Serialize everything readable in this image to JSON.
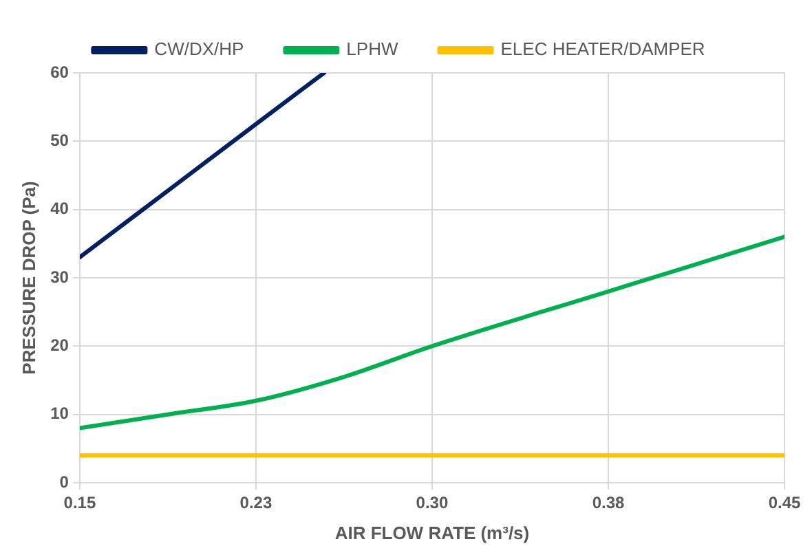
{
  "chart_data": {
    "type": "line",
    "xlabel": "AIR FLOW RATE (m³/s)",
    "ylabel": "PRESSURE DROP (Pa)",
    "xlim": [
      0.15,
      0.45
    ],
    "xticks": [
      0.15,
      {
        "value": 0.225,
        "label": "0.23"
      },
      {
        "value": 0.3,
        "label": "0.30"
      },
      {
        "value": 0.375,
        "label": "0.38"
      },
      0.45
    ],
    "ylim": [
      0,
      60
    ],
    "yticks": [
      0,
      10,
      20,
      30,
      40,
      50,
      60
    ],
    "series": [
      {
        "name": "CW/DX/HP",
        "color": "#002060",
        "x": [
          0.15,
          0.225,
          0.254
        ],
        "values": [
          33,
          52.5,
          60
        ]
      },
      {
        "name": "LPHW",
        "color": "#00b050",
        "x": [
          0.15,
          0.1875,
          0.225,
          0.2625,
          0.3,
          0.375,
          0.45
        ],
        "values": [
          8,
          10,
          12,
          15.5,
          20,
          28,
          36
        ]
      },
      {
        "name": "ELEC HEATER/DAMPER",
        "color": "#ffc000",
        "x": [
          0.15,
          0.45
        ],
        "values": [
          4,
          4
        ]
      }
    ],
    "grid": true,
    "legend": "top",
    "marker": "none",
    "line_style": "solid"
  }
}
